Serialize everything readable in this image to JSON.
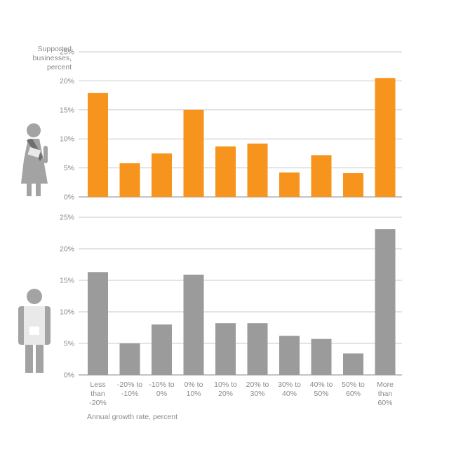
{
  "y_axis_label": [
    "Supported",
    "businesses,",
    "percent"
  ],
  "x_axis_label": "Annual growth rate, percent",
  "icons": [
    "woman-icon",
    "man-icon"
  ],
  "colors": {
    "female": "#f7941d",
    "male": "#9b9b9b",
    "grid": "#c8c8c8",
    "axis": "#8a8a8a"
  },
  "chart_data": [
    {
      "type": "bar",
      "series": [
        {
          "name": "",
          "values": [
            17.9,
            5.8,
            7.5,
            15.0,
            8.7,
            9.2,
            4.2,
            7.2,
            4.1,
            20.5
          ]
        }
      ],
      "categories": [
        "Less than -20%",
        "-20% to -10%",
        "-10% to 0%",
        "0% to 10%",
        "10% to 20%",
        "20% to 30%",
        "30% to 40%",
        "40% to 50%",
        "50% to 60%",
        "More than 60%"
      ],
      "yticks": [
        "0%",
        "5%",
        "10%",
        "15%",
        "20%",
        "25%"
      ],
      "ylim": [
        0,
        25
      ],
      "grid": true
    },
    {
      "type": "bar",
      "series": [
        {
          "name": "",
          "values": [
            16.3,
            5.0,
            8.0,
            15.9,
            8.2,
            8.2,
            6.2,
            5.7,
            3.4,
            23.1
          ]
        }
      ],
      "categories": [
        "Less than -20%",
        "-20% to -10%",
        "-10% to 0%",
        "0% to 10%",
        "10% to 20%",
        "20% to 30%",
        "30% to 40%",
        "40% to 50%",
        "50% to 60%",
        "More than 60%"
      ],
      "yticks": [
        "0%",
        "5%",
        "10%",
        "15%",
        "20%",
        "25%"
      ],
      "ylim": [
        0,
        25
      ],
      "grid": true
    }
  ],
  "x_tick_labels": [
    [
      "Less",
      "than",
      "-20%"
    ],
    [
      "-20% to",
      "-10%"
    ],
    [
      "-10% to",
      "0%"
    ],
    [
      "0% to",
      "10%"
    ],
    [
      "10% to",
      "20%"
    ],
    [
      "20% to",
      "30%"
    ],
    [
      "30% to",
      "40%"
    ],
    [
      "40% to",
      "50%"
    ],
    [
      "50% to",
      "60%"
    ],
    [
      "More",
      "than",
      "60%"
    ]
  ]
}
